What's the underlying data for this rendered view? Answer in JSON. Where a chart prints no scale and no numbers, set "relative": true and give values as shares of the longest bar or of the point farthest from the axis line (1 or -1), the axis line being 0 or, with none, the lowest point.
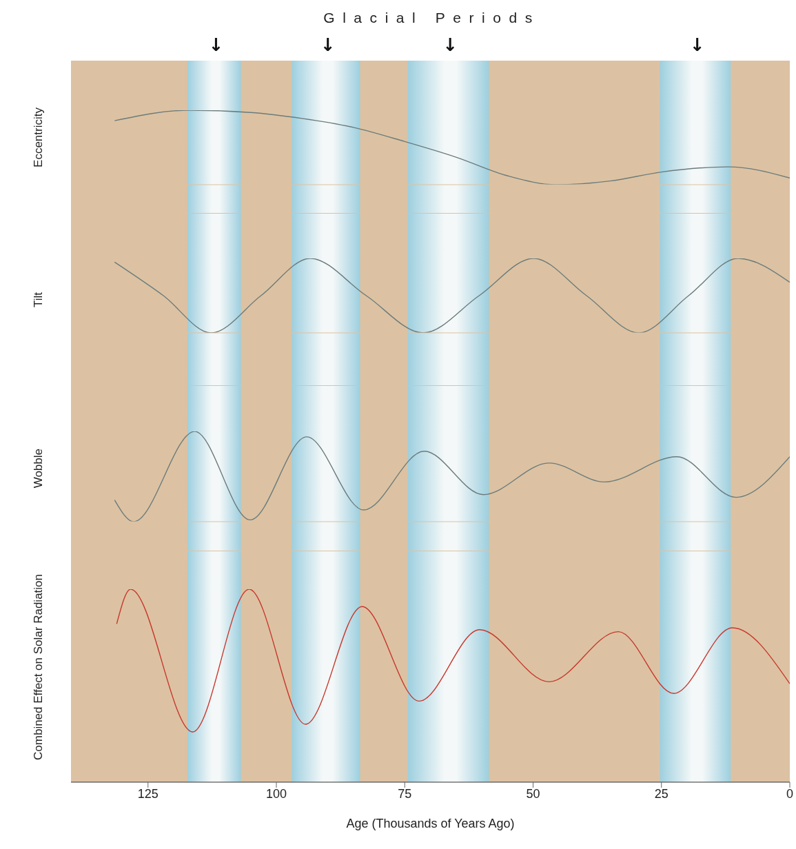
{
  "chart_data": [
    {
      "type": "line",
      "title": "Glacial Periods",
      "ylabel": "Eccentricity",
      "relative": true,
      "xlim": [
        140,
        0
      ],
      "tick_labels": false,
      "bands": [
        {
          "axis": "x",
          "from": 117.3,
          "to": 106.9,
          "color": "#9dcfdf",
          "label": "↓"
        },
        {
          "axis": "x",
          "from": 97,
          "to": 83.7,
          "color": "#9dcfdf",
          "label": "↓"
        },
        {
          "axis": "x",
          "from": 74.4,
          "to": 58.6,
          "color": "#9dcfdf",
          "label": "↓"
        },
        {
          "axis": "x",
          "from": 25.3,
          "to": 11.5,
          "color": "#9dcfdf",
          "label": "↓"
        }
      ],
      "series": [
        {
          "color": "#6b7b7d",
          "x": [
            131.5,
            117,
            105,
            95,
            85,
            75,
            65,
            55,
            45.5,
            35,
            25,
            12,
            0
          ],
          "values": [
            0.86,
            1,
            0.97,
            0.89,
            0.77,
            0.58,
            0.37,
            0.12,
            0,
            0.05,
            0.17,
            0.24,
            0.09
          ]
        }
      ]
    },
    {
      "type": "line",
      "ylabel": "Tilt",
      "relative": true,
      "xlim": [
        140,
        0
      ],
      "tick_labels": false,
      "bands": [
        {
          "axis": "x",
          "from": 117.3,
          "to": 106.9,
          "color": "#9dcfdf"
        },
        {
          "axis": "x",
          "from": 97,
          "to": 83.7,
          "color": "#9dcfdf"
        },
        {
          "axis": "x",
          "from": 74.4,
          "to": 58.6,
          "color": "#9dcfdf"
        },
        {
          "axis": "x",
          "from": 25.3,
          "to": 11.5,
          "color": "#9dcfdf"
        }
      ],
      "series": [
        {
          "color": "#6b7b7d",
          "x": [
            131.5,
            122,
            112.7,
            103,
            93.4,
            82.5,
            71.4,
            60.5,
            49.9,
            39.6,
            29.4,
            19.7,
            10.1,
            0
          ],
          "values": [
            0.95,
            0.5,
            0,
            0.5,
            1,
            0.5,
            0,
            0.5,
            1,
            0.5,
            0,
            0.5,
            1,
            0.68
          ]
        }
      ]
    },
    {
      "type": "line",
      "ylabel": "Wobble",
      "relative": true,
      "xlim": [
        140,
        0
      ],
      "tick_labels": false,
      "bands": [
        {
          "axis": "x",
          "from": 117.3,
          "to": 106.9,
          "color": "#9dcfdf"
        },
        {
          "axis": "x",
          "from": 97,
          "to": 83.7,
          "color": "#9dcfdf"
        },
        {
          "axis": "x",
          "from": 74.4,
          "to": 58.6,
          "color": "#9dcfdf"
        },
        {
          "axis": "x",
          "from": 25.3,
          "to": 11.5,
          "color": "#9dcfdf"
        }
      ],
      "series": [
        {
          "color": "#6b7b7d",
          "x": [
            131.5,
            127.8,
            115.9,
            105.1,
            94.1,
            83,
            71.2,
            59.7,
            46.9,
            36.1,
            22,
            10.5,
            0
          ],
          "values": [
            0.24,
            0,
            1,
            0.02,
            0.94,
            0.13,
            0.78,
            0.3,
            0.65,
            0.44,
            0.72,
            0.27,
            0.72
          ]
        }
      ]
    },
    {
      "type": "line",
      "ylabel": "Combined Effect on Solar Radiation",
      "xlabel": "Age (Thousands of Years Ago)",
      "relative": true,
      "xlim": [
        140,
        0
      ],
      "xticks": [
        125,
        100,
        75,
        50,
        25,
        0
      ],
      "bands": [
        {
          "axis": "x",
          "from": 117.3,
          "to": 106.9,
          "color": "#9dcfdf"
        },
        {
          "axis": "x",
          "from": 97,
          "to": 83.7,
          "color": "#9dcfdf"
        },
        {
          "axis": "x",
          "from": 74.4,
          "to": 58.6,
          "color": "#9dcfdf"
        },
        {
          "axis": "x",
          "from": 25.3,
          "to": 11.5,
          "color": "#9dcfdf"
        }
      ],
      "series": [
        {
          "color": "#c8372d",
          "x": [
            131.1,
            128.4,
            116.3,
            105.3,
            94.3,
            83.3,
            72.2,
            60.4,
            46.9,
            33.4,
            22.6,
            11.2,
            0
          ],
          "values": [
            0.82,
            1,
            0.26,
            1,
            0.3,
            0.91,
            0.42,
            0.79,
            0.52,
            0.78,
            0.46,
            0.8,
            0.51
          ]
        }
      ]
    }
  ]
}
